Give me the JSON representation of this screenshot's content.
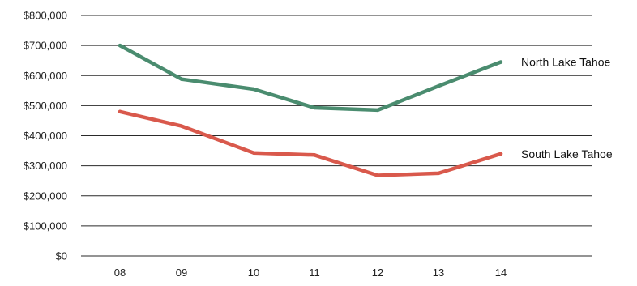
{
  "chart_data": {
    "type": "line",
    "x": [
      "08",
      "09",
      "10",
      "11",
      "12",
      "13",
      "14"
    ],
    "y_ticks": [
      "$0",
      "$100,000",
      "$200,000",
      "$300,000",
      "$400,000",
      "$500,000",
      "$600,000",
      "$700,000",
      "$800,000"
    ],
    "ylim": [
      0,
      800000
    ],
    "grid": true,
    "series": [
      {
        "name": "North Lake Tahoe",
        "color": "#4a8c6f",
        "values": [
          700000,
          588000,
          555000,
          493000,
          485000,
          565000,
          645000
        ]
      },
      {
        "name": "South Lake Tahoe",
        "color": "#d9594c",
        "values": [
          480000,
          432000,
          343000,
          336000,
          268000,
          275000,
          340000
        ]
      }
    ]
  }
}
